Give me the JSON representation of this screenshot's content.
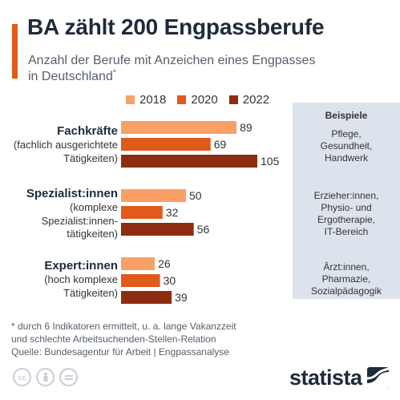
{
  "header": {
    "title": "BA zählt 200 Engpassberufe",
    "subtitle_line1": "Anzahl der Berufe mit Anzeichen eines Engpasses",
    "subtitle_line2": "in Deutschland",
    "subtitle_marker": "*"
  },
  "colors": {
    "accent": "#e05a1b",
    "y2018": "#f9a066",
    "y2020": "#e05a1b",
    "y2022": "#8c2d12",
    "panel": "#dde3ec"
  },
  "legend": [
    "2018",
    "2020",
    "2022"
  ],
  "groups": [
    {
      "title": "Fachkräfte",
      "sub": "(fachlich ausgerichtete\nTätigkeiten)"
    },
    {
      "title": "Spezialist:innen",
      "sub": "(komplexe\nSpezialist:innen-\ntätigkeiten)"
    },
    {
      "title": "Expert:innen",
      "sub": "(hoch komplexe\nTätigkeiten)"
    }
  ],
  "examples": {
    "heading": "Beispiele",
    "items": [
      "Pflege,\nGesundheit,\nHandwerk",
      "Erzieher:innen,\nPhysio- und\nErgotherapie,\nIT-Bereich",
      "Ärzt:innen,\nPharmazie,\nSozialpädagogik"
    ]
  },
  "chart_data": {
    "type": "bar",
    "orientation": "horizontal",
    "categories": [
      "Fachkräfte",
      "Spezialist:innen",
      "Expert:innen"
    ],
    "series": [
      {
        "name": "2018",
        "values": [
          89,
          50,
          26
        ]
      },
      {
        "name": "2020",
        "values": [
          69,
          32,
          30
        ]
      },
      {
        "name": "2022",
        "values": [
          105,
          56,
          39
        ]
      }
    ],
    "xlim": [
      0,
      105
    ],
    "grid": false,
    "legend_position": "top"
  },
  "footnote": "* durch 6 Indikatoren ermittelt, u. a. lange Vakanzzeit\n   und schlechte Arbeitsuchenden-Stellen-Relation",
  "source": "Quelle: Bundesagentur für Arbeit | Engpassanalyse",
  "license_icons": [
    "cc-icon",
    "person-icon",
    "equal-icon"
  ],
  "brand": {
    "name": "statista"
  }
}
